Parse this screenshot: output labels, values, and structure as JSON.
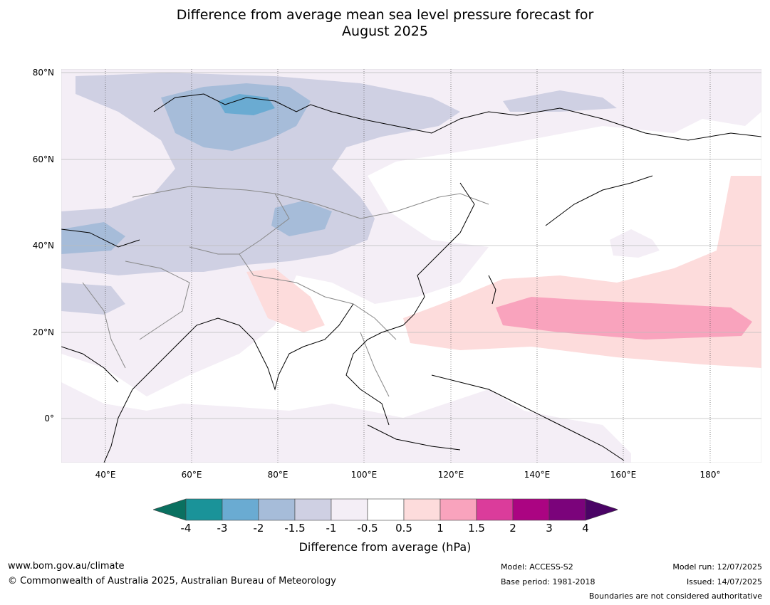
{
  "title_line1": "Difference from average mean sea level pressure forecast for",
  "title_line2": "August 2025",
  "map": {
    "lat_labels": [
      "80°N",
      "60°N",
      "40°N",
      "20°N",
      "0°"
    ],
    "lon_labels": [
      "40°E",
      "60°E",
      "80°E",
      "100°E",
      "120°E",
      "140°E",
      "160°E",
      "180°"
    ]
  },
  "colorbar": {
    "ticks": [
      "-4",
      "-3",
      "-2",
      "-1.5",
      "-1",
      "-0.5",
      "0.5",
      "1",
      "1.5",
      "2",
      "3",
      "4"
    ],
    "colors": [
      "#1a9399",
      "#6aabd2",
      "#a6bcd9",
      "#cfd0e3",
      "#f4eef6",
      "#ffffff",
      "#fddcdc",
      "#f9a3bd",
      "#db3c9b",
      "#ab0482",
      "#7b037b"
    ],
    "extend_low_color": "#0a7060",
    "extend_high_color": "#4a0465",
    "label": "Difference from average (hPa)"
  },
  "footer": {
    "website": "www.bom.gov.au/climate",
    "copyright": "© Commonwealth of Australia 2025, Australian Bureau of Meteorology",
    "model": "Model: ACCESS-S2",
    "base_period": "Base period: 1981-2018",
    "model_run": "Model run: 12/07/2025",
    "issued": "Issued: 14/07/2025",
    "boundaries": "Boundaries are not considered authoritative"
  }
}
